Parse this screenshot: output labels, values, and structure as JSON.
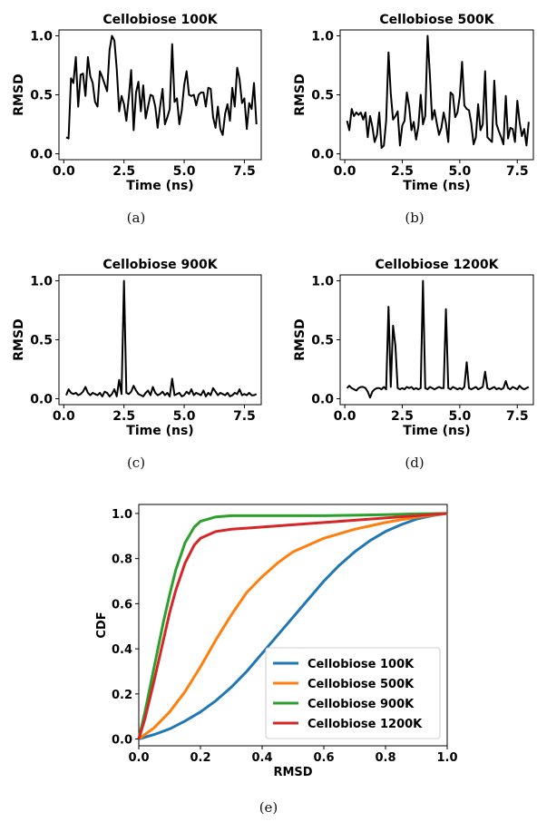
{
  "chart_data": [
    {
      "id": "a",
      "type": "line",
      "title": "Cellobiose 100K",
      "caption": "(a)",
      "xlabel": "Time (ns)",
      "ylabel": "RMSD",
      "xlim": [
        -0.2,
        8.2
      ],
      "ylim": [
        -0.05,
        1.05
      ],
      "xticks": [
        "0.0",
        "2.5",
        "5.0",
        "7.5"
      ],
      "yticks": [
        "0.0",
        "0.5",
        "1.0"
      ],
      "series": [
        {
          "color": "#000000",
          "x": [
            0.1,
            0.2,
            0.3,
            0.4,
            0.5,
            0.6,
            0.7,
            0.8,
            0.9,
            1.0,
            1.1,
            1.2,
            1.3,
            1.4,
            1.5,
            1.6,
            1.7,
            1.8,
            1.9,
            2.0,
            2.1,
            2.2,
            2.3,
            2.4,
            2.5,
            2.6,
            2.7,
            2.8,
            2.9,
            3.0,
            3.1,
            3.2,
            3.3,
            3.4,
            3.5,
            3.6,
            3.7,
            3.8,
            3.9,
            4.0,
            4.1,
            4.2,
            4.3,
            4.4,
            4.5,
            4.6,
            4.7,
            4.8,
            4.9,
            5.0,
            5.1,
            5.2,
            5.3,
            5.4,
            5.5,
            5.6,
            5.7,
            5.8,
            5.9,
            6.0,
            6.1,
            6.2,
            6.3,
            6.4,
            6.5,
            6.6,
            6.7,
            6.8,
            6.9,
            7.0,
            7.1,
            7.2,
            7.3,
            7.4,
            7.5,
            7.6,
            7.7,
            7.8,
            7.9,
            8.0
          ],
          "y": [
            0.14,
            0.13,
            0.64,
            0.6,
            0.82,
            0.4,
            0.67,
            0.68,
            0.49,
            0.82,
            0.66,
            0.6,
            0.44,
            0.4,
            0.7,
            0.65,
            0.59,
            0.53,
            0.88,
            1.0,
            0.96,
            0.72,
            0.36,
            0.49,
            0.42,
            0.28,
            0.48,
            0.71,
            0.2,
            0.52,
            0.61,
            0.36,
            0.58,
            0.3,
            0.4,
            0.5,
            0.49,
            0.4,
            0.22,
            0.4,
            0.55,
            0.25,
            0.31,
            0.38,
            0.93,
            0.44,
            0.47,
            0.25,
            0.37,
            0.58,
            0.7,
            0.5,
            0.49,
            0.5,
            0.41,
            0.5,
            0.52,
            0.52,
            0.4,
            0.56,
            0.55,
            0.31,
            0.22,
            0.4,
            0.21,
            0.16,
            0.34,
            0.42,
            0.28,
            0.56,
            0.4,
            0.73,
            0.63,
            0.43,
            0.47,
            0.21,
            0.43,
            0.38,
            0.6,
            0.25
          ]
        }
      ]
    },
    {
      "id": "b",
      "type": "line",
      "title": "Cellobiose 500K",
      "caption": "(b)",
      "xlabel": "Time (ns)",
      "ylabel": "RMSD",
      "xlim": [
        -0.2,
        8.2
      ],
      "ylim": [
        -0.05,
        1.05
      ],
      "xticks": [
        "0.0",
        "2.5",
        "5.0",
        "7.5"
      ],
      "yticks": [
        "0.0",
        "0.5",
        "1.0"
      ],
      "series": [
        {
          "color": "#000000",
          "x": [
            0.1,
            0.2,
            0.3,
            0.4,
            0.5,
            0.6,
            0.7,
            0.8,
            0.9,
            1.0,
            1.1,
            1.2,
            1.3,
            1.4,
            1.5,
            1.6,
            1.7,
            1.8,
            1.9,
            2.0,
            2.1,
            2.2,
            2.3,
            2.4,
            2.5,
            2.6,
            2.7,
            2.8,
            2.9,
            3.0,
            3.1,
            3.2,
            3.3,
            3.4,
            3.5,
            3.6,
            3.7,
            3.8,
            3.9,
            4.0,
            4.1,
            4.2,
            4.3,
            4.4,
            4.5,
            4.6,
            4.7,
            4.8,
            4.9,
            5.0,
            5.1,
            5.2,
            5.3,
            5.4,
            5.5,
            5.6,
            5.7,
            5.8,
            5.9,
            6.0,
            6.1,
            6.2,
            6.3,
            6.4,
            6.5,
            6.6,
            6.7,
            6.8,
            6.9,
            7.0,
            7.1,
            7.2,
            7.3,
            7.4,
            7.5,
            7.6,
            7.7,
            7.8,
            7.9,
            8.0
          ],
          "y": [
            0.28,
            0.2,
            0.38,
            0.32,
            0.35,
            0.33,
            0.35,
            0.29,
            0.35,
            0.14,
            0.32,
            0.23,
            0.1,
            0.16,
            0.35,
            0.05,
            0.07,
            0.28,
            0.86,
            0.51,
            0.29,
            0.32,
            0.36,
            0.07,
            0.24,
            0.28,
            0.52,
            0.4,
            0.2,
            0.27,
            0.12,
            0.23,
            0.5,
            0.25,
            0.32,
            1.0,
            0.67,
            0.29,
            0.37,
            0.26,
            0.16,
            0.22,
            0.35,
            0.26,
            0.1,
            0.52,
            0.5,
            0.31,
            0.35,
            0.49,
            0.78,
            0.41,
            0.38,
            0.37,
            0.26,
            0.08,
            0.14,
            0.42,
            0.2,
            0.25,
            0.7,
            0.14,
            0.12,
            0.1,
            0.62,
            0.25,
            0.19,
            0.14,
            0.08,
            0.49,
            0.13,
            0.22,
            0.21,
            0.1,
            0.45,
            0.27,
            0.15,
            0.21,
            0.07,
            0.27
          ]
        }
      ]
    },
    {
      "id": "c",
      "type": "line",
      "title": "Cellobiose 900K",
      "caption": "(c)",
      "xlabel": "Time (ns)",
      "ylabel": "RMSD",
      "xlim": [
        -0.2,
        8.2
      ],
      "ylim": [
        -0.05,
        1.05
      ],
      "xticks": [
        "0.0",
        "2.5",
        "5.0",
        "7.5"
      ],
      "yticks": [
        "0.0",
        "0.5",
        "1.0"
      ],
      "series": [
        {
          "color": "#000000",
          "x": [
            0.1,
            0.2,
            0.3,
            0.4,
            0.5,
            0.6,
            0.7,
            0.8,
            0.9,
            1.0,
            1.1,
            1.2,
            1.3,
            1.4,
            1.5,
            1.6,
            1.7,
            1.8,
            1.9,
            2.0,
            2.1,
            2.2,
            2.3,
            2.4,
            2.5,
            2.6,
            2.7,
            2.8,
            2.9,
            3.0,
            3.1,
            3.2,
            3.3,
            3.4,
            3.5,
            3.6,
            3.7,
            3.8,
            3.9,
            4.0,
            4.1,
            4.2,
            4.3,
            4.4,
            4.5,
            4.6,
            4.7,
            4.8,
            4.9,
            5.0,
            5.1,
            5.2,
            5.3,
            5.4,
            5.5,
            5.6,
            5.7,
            5.8,
            5.9,
            6.0,
            6.1,
            6.2,
            6.3,
            6.4,
            6.5,
            6.6,
            6.7,
            6.8,
            6.9,
            7.0,
            7.1,
            7.2,
            7.3,
            7.4,
            7.5,
            7.6,
            7.7,
            7.8,
            7.9,
            8.0
          ],
          "y": [
            0.03,
            0.08,
            0.05,
            0.04,
            0.05,
            0.03,
            0.04,
            0.06,
            0.1,
            0.05,
            0.03,
            0.05,
            0.04,
            0.03,
            0.05,
            0.02,
            0.06,
            0.05,
            0.02,
            0.04,
            0.08,
            0.02,
            0.16,
            0.04,
            1.0,
            0.05,
            0.04,
            0.06,
            0.11,
            0.07,
            0.04,
            0.03,
            0.02,
            0.05,
            0.07,
            0.03,
            0.1,
            0.05,
            0.03,
            0.04,
            0.06,
            0.03,
            0.05,
            0.02,
            0.17,
            0.03,
            0.04,
            0.05,
            0.02,
            0.03,
            0.06,
            0.04,
            0.08,
            0.03,
            0.05,
            0.04,
            0.03,
            0.07,
            0.02,
            0.05,
            0.03,
            0.09,
            0.06,
            0.03,
            0.05,
            0.04,
            0.03,
            0.05,
            0.02,
            0.03,
            0.05,
            0.04,
            0.08,
            0.03,
            0.04,
            0.03,
            0.05,
            0.03,
            0.03,
            0.04
          ]
        }
      ]
    },
    {
      "id": "d",
      "type": "line",
      "title": "Cellobiose 1200K",
      "caption": "(d)",
      "xlabel": "Time (ns)",
      "ylabel": "RMSD",
      "xlim": [
        -0.2,
        8.2
      ],
      "ylim": [
        -0.05,
        1.05
      ],
      "xticks": [
        "0.0",
        "2.5",
        "5.0",
        "7.5"
      ],
      "yticks": [
        "0.0",
        "0.5",
        "1.0"
      ],
      "series": [
        {
          "color": "#000000",
          "x": [
            0.1,
            0.2,
            0.3,
            0.4,
            0.5,
            0.6,
            0.7,
            0.8,
            0.9,
            1.0,
            1.1,
            1.2,
            1.3,
            1.4,
            1.5,
            1.6,
            1.7,
            1.8,
            1.9,
            2.0,
            2.1,
            2.2,
            2.3,
            2.4,
            2.5,
            2.6,
            2.7,
            2.8,
            2.9,
            3.0,
            3.1,
            3.2,
            3.3,
            3.4,
            3.5,
            3.6,
            3.7,
            3.8,
            3.9,
            4.0,
            4.1,
            4.2,
            4.3,
            4.4,
            4.5,
            4.6,
            4.7,
            4.8,
            4.9,
            5.0,
            5.1,
            5.2,
            5.3,
            5.4,
            5.5,
            5.6,
            5.7,
            5.8,
            5.9,
            6.0,
            6.1,
            6.2,
            6.3,
            6.4,
            6.5,
            6.6,
            6.7,
            6.8,
            6.9,
            7.0,
            7.1,
            7.2,
            7.3,
            7.4,
            7.5,
            7.6,
            7.7,
            7.8,
            7.9,
            8.0
          ],
          "y": [
            0.09,
            0.11,
            0.09,
            0.08,
            0.07,
            0.09,
            0.1,
            0.1,
            0.09,
            0.06,
            0.01,
            0.06,
            0.08,
            0.09,
            0.09,
            0.08,
            0.1,
            0.08,
            0.78,
            0.1,
            0.62,
            0.45,
            0.09,
            0.08,
            0.09,
            0.08,
            0.1,
            0.09,
            0.1,
            0.08,
            0.09,
            0.08,
            0.09,
            1.0,
            0.09,
            0.08,
            0.1,
            0.09,
            0.08,
            0.09,
            0.1,
            0.09,
            0.09,
            0.76,
            0.09,
            0.08,
            0.1,
            0.09,
            0.08,
            0.09,
            0.08,
            0.1,
            0.31,
            0.09,
            0.08,
            0.09,
            0.1,
            0.08,
            0.09,
            0.1,
            0.23,
            0.09,
            0.08,
            0.09,
            0.1,
            0.08,
            0.09,
            0.08,
            0.09,
            0.15,
            0.09,
            0.08,
            0.1,
            0.09,
            0.08,
            0.11,
            0.09,
            0.08,
            0.09,
            0.1
          ]
        }
      ]
    },
    {
      "id": "e",
      "type": "line",
      "title": "",
      "caption": "(e)",
      "xlabel": "RMSD",
      "ylabel": "CDF",
      "xlim": [
        0.0,
        1.0
      ],
      "ylim": [
        -0.03,
        1.04
      ],
      "xticks": [
        "0.0",
        "0.2",
        "0.4",
        "0.6",
        "0.8",
        "1.0"
      ],
      "yticks": [
        "0.0",
        "0.2",
        "0.4",
        "0.6",
        "0.8",
        "1.0"
      ],
      "legend": "lower-right",
      "series": [
        {
          "name": "Cellobiose 100K",
          "color": "#1f77b4",
          "x": [
            0,
            0.05,
            0.1,
            0.15,
            0.2,
            0.25,
            0.3,
            0.35,
            0.4,
            0.45,
            0.5,
            0.55,
            0.6,
            0.65,
            0.7,
            0.75,
            0.8,
            0.85,
            0.9,
            0.95,
            1.0
          ],
          "y": [
            0.0,
            0.02,
            0.045,
            0.08,
            0.12,
            0.17,
            0.23,
            0.3,
            0.38,
            0.46,
            0.54,
            0.62,
            0.7,
            0.77,
            0.83,
            0.88,
            0.92,
            0.95,
            0.975,
            0.99,
            1.0
          ]
        },
        {
          "name": "Cellobiose 500K",
          "color": "#ff7f0e",
          "x": [
            0,
            0.05,
            0.1,
            0.15,
            0.2,
            0.25,
            0.3,
            0.35,
            0.4,
            0.45,
            0.5,
            0.55,
            0.6,
            0.65,
            0.7,
            0.75,
            0.8,
            0.85,
            0.9,
            0.95,
            1.0
          ],
          "y": [
            0.0,
            0.05,
            0.12,
            0.21,
            0.32,
            0.44,
            0.55,
            0.65,
            0.72,
            0.78,
            0.83,
            0.86,
            0.89,
            0.91,
            0.93,
            0.945,
            0.96,
            0.972,
            0.983,
            0.992,
            1.0
          ]
        },
        {
          "name": "Cellobiose 900K",
          "color": "#2ca02c",
          "x": [
            0,
            0.02,
            0.05,
            0.08,
            0.1,
            0.12,
            0.15,
            0.18,
            0.2,
            0.25,
            0.3,
            0.35,
            0.4,
            0.5,
            0.6,
            0.7,
            0.8,
            0.9,
            1.0
          ],
          "y": [
            0.0,
            0.12,
            0.32,
            0.52,
            0.64,
            0.75,
            0.87,
            0.94,
            0.965,
            0.985,
            0.99,
            0.99,
            0.99,
            0.99,
            0.99,
            0.992,
            0.995,
            0.998,
            1.0
          ]
        },
        {
          "name": "Cellobiose 1200K",
          "color": "#d62728",
          "x": [
            0,
            0.02,
            0.05,
            0.08,
            0.1,
            0.12,
            0.15,
            0.18,
            0.2,
            0.25,
            0.3,
            0.35,
            0.4,
            0.5,
            0.6,
            0.7,
            0.8,
            0.9,
            1.0
          ],
          "y": [
            0.0,
            0.09,
            0.26,
            0.44,
            0.56,
            0.66,
            0.78,
            0.86,
            0.89,
            0.92,
            0.93,
            0.935,
            0.94,
            0.95,
            0.96,
            0.97,
            0.98,
            0.99,
            1.0
          ]
        }
      ]
    }
  ]
}
